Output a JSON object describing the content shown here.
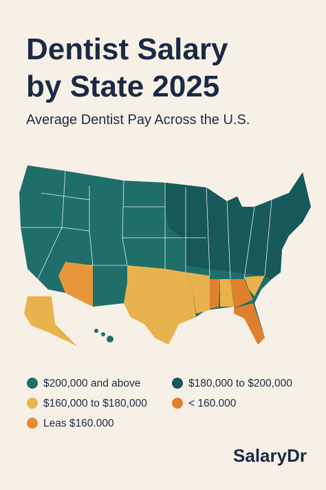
{
  "header": {
    "title_lines": [
      "Dentist Salary",
      "by State 2025"
    ],
    "subtitle": "Average Dentist Pay Across the U.S."
  },
  "legend": {
    "items": [
      {
        "label": "$200,000 and above",
        "color": "#1f6e6a"
      },
      {
        "label": "$180,000 to $200,000",
        "color": "#17595a"
      },
      {
        "label": "$160,000 to $180,000",
        "color": "#e8b24c"
      },
      {
        "label": "< 160.000",
        "color": "#e0802f"
      },
      {
        "label": "Leas $160.000",
        "color": "#e58a3a"
      }
    ]
  },
  "brand": "SalaryDr"
}
